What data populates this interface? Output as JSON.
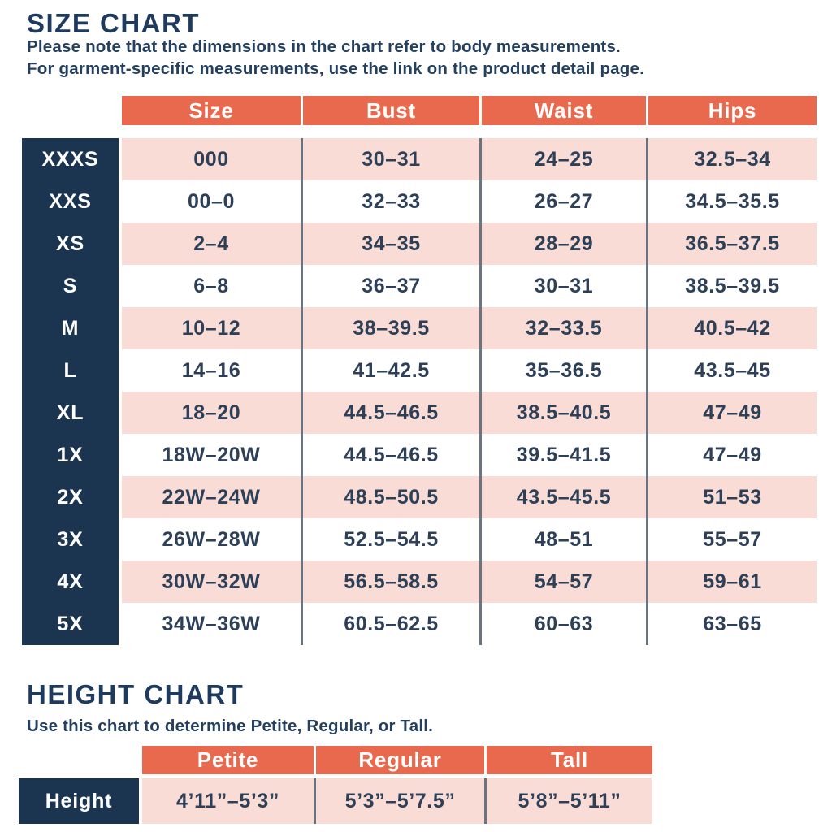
{
  "size_chart": {
    "title": "SIZE CHART",
    "subtitle_line1": "Please note that the dimensions in the chart refer to body measurements.",
    "subtitle_line2": "For garment-specific measurements, use the link on the product detail page.",
    "columns": [
      "Size",
      "Bust",
      "Waist",
      "Hips"
    ],
    "rows": [
      [
        "XXXS",
        "000",
        "30–31",
        "24–25",
        "32.5–34"
      ],
      [
        "XXS",
        "00–0",
        "32–33",
        "26–27",
        "34.5–35.5"
      ],
      [
        "XS",
        "2–4",
        "34–35",
        "28–29",
        "36.5–37.5"
      ],
      [
        "S",
        "6–8",
        "36–37",
        "30–31",
        "38.5–39.5"
      ],
      [
        "M",
        "10–12",
        "38–39.5",
        "32–33.5",
        "40.5–42"
      ],
      [
        "L",
        "14–16",
        "41–42.5",
        "35–36.5",
        "43.5–45"
      ],
      [
        "XL",
        "18–20",
        "44.5–46.5",
        "38.5–40.5",
        "47–49"
      ],
      [
        "1X",
        "18W–20W",
        "44.5–46.5",
        "39.5–41.5",
        "47–49"
      ],
      [
        "2X",
        "22W–24W",
        "48.5–50.5",
        "43.5–45.5",
        "51–53"
      ],
      [
        "3X",
        "26W–28W",
        "52.5–54.5",
        "48–51",
        "55–57"
      ],
      [
        "4X",
        "30W–32W",
        "56.5–58.5",
        "54–57",
        "59–61"
      ],
      [
        "5X",
        "34W–36W",
        "60.5–62.5",
        "60–63",
        "63–65"
      ]
    ]
  },
  "height_chart": {
    "title": "HEIGHT CHART",
    "subtitle": "Use this chart to determine Petite, Regular, or Tall.",
    "columns": [
      "Petite",
      "Regular",
      "Tall"
    ],
    "row_label": "Height",
    "values": [
      "4’11”–5’3”",
      "5’3”–5’7.5”",
      "5’8”–5’11”"
    ]
  },
  "colors": {
    "header_orange": "#E8694E",
    "row_pink": "#F9DCD5",
    "label_navy": "#1B3450",
    "text_navy": "#2E4057",
    "divider_gray": "#6A7480"
  }
}
